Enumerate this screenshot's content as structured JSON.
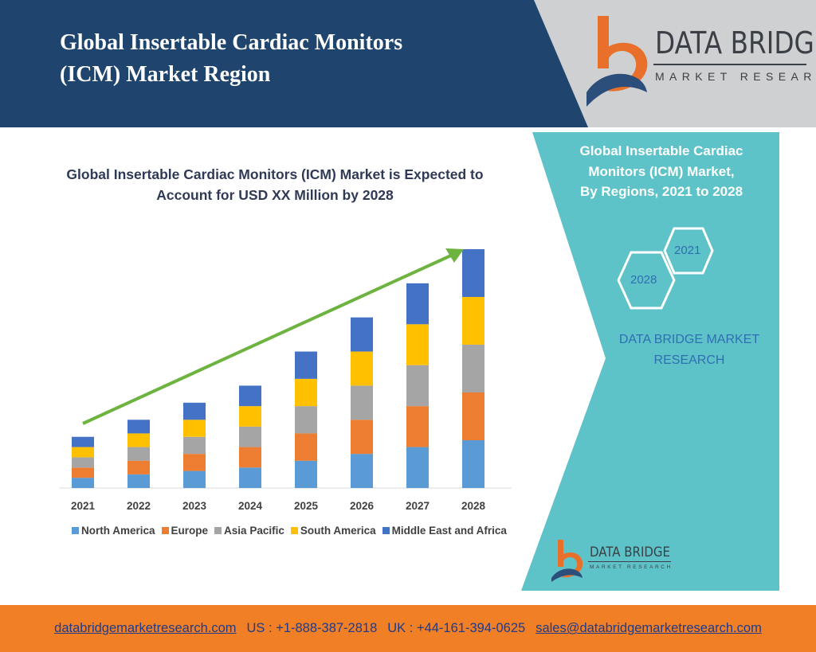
{
  "header": {
    "title_line1": "Global Insertable Cardiac Monitors",
    "title_line2": "(ICM) Market Region"
  },
  "logo": {
    "name": "DATA BRIDGE",
    "sub": "MARKET RESEARCH"
  },
  "chart_title_line1": "Global Insertable Cardiac Monitors (ICM) Market is Expected to",
  "chart_title_line2": "Account for USD XX Million by 2028",
  "side_panel": {
    "title_line1": "Global Insertable Cardiac",
    "title_line2": "Monitors (ICM) Market,",
    "title_line3": "By Regions, 2021 to 2028",
    "hex_labels": [
      "2021",
      "2028"
    ],
    "brand_line1": "DATA BRIDGE MARKET",
    "brand_line2": "RESEARCH"
  },
  "colors": {
    "header_blue": "#1f456e",
    "panel_teal": "#5ec3c8",
    "footer_orange": "#f07f26",
    "trend_arrow": "#6db33f"
  },
  "chart_data": {
    "type": "bar",
    "stacked": true,
    "categories": [
      "2021",
      "2022",
      "2023",
      "2024",
      "2025",
      "2026",
      "2027",
      "2028"
    ],
    "series": [
      {
        "name": "North America",
        "color": "#5b9bd5",
        "values": [
          3,
          4,
          5,
          6,
          8,
          10,
          12,
          14
        ]
      },
      {
        "name": "Europe",
        "color": "#ed7d31",
        "values": [
          3,
          4,
          5,
          6,
          8,
          10,
          12,
          14
        ]
      },
      {
        "name": "Asia Pacific",
        "color": "#a5a5a5",
        "values": [
          3,
          4,
          5,
          6,
          8,
          10,
          12,
          14
        ]
      },
      {
        "name": "South America",
        "color": "#ffc000",
        "values": [
          3,
          4,
          5,
          6,
          8,
          10,
          12,
          14
        ]
      },
      {
        "name": "Middle East and Africa",
        "color": "#4472c4",
        "values": [
          3,
          4,
          5,
          6,
          8,
          10,
          12,
          14
        ]
      }
    ],
    "ylim": [
      0,
      70
    ],
    "grid": false,
    "legend": "bottom",
    "annotation": "upward trend arrow"
  },
  "small_logo": {
    "name": "DATA BRIDGE",
    "sub": "MARKET RESEARCH"
  },
  "footer": {
    "website": "databridgemarketresearch.com",
    "us_phone": "US : +1-888-387-2818",
    "uk_phone": "UK : +44-161-394-0625",
    "email": "sales@databridgemarketresearch.com"
  }
}
